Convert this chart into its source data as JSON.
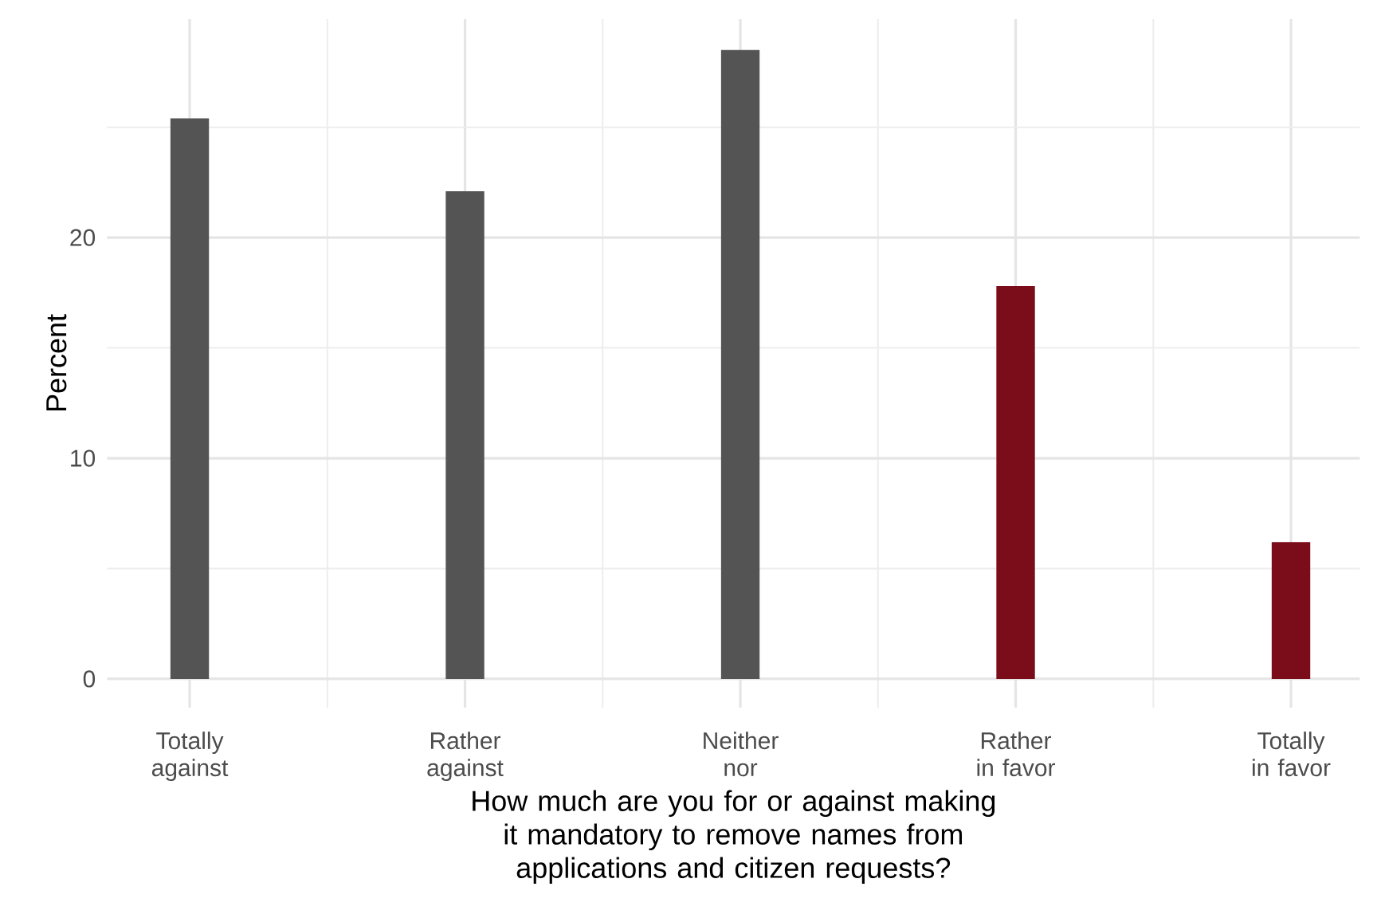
{
  "chart_data": {
    "type": "bar",
    "categories": [
      "Totally against",
      "Rather against",
      "Neither nor",
      "Rather in favor",
      "Totally in favor"
    ],
    "values": [
      25.4,
      22.1,
      28.5,
      17.8,
      6.2
    ],
    "colors": [
      "#545454",
      "#545454",
      "#545454",
      "#7b0d1a",
      "#7b0d1a"
    ],
    "xlabel": "How much are you for or against making it mandatory to remove names from applications and citizen requests?",
    "ylabel": "Percent",
    "ylim": [
      -1.3,
      29.9
    ],
    "yticks": [
      0,
      {
        "value": 5,
        "label": null
      },
      10,
      {
        "value": 15,
        "label": null
      },
      20,
      {
        "value": 25,
        "label": null
      }
    ],
    "grid": true
  }
}
